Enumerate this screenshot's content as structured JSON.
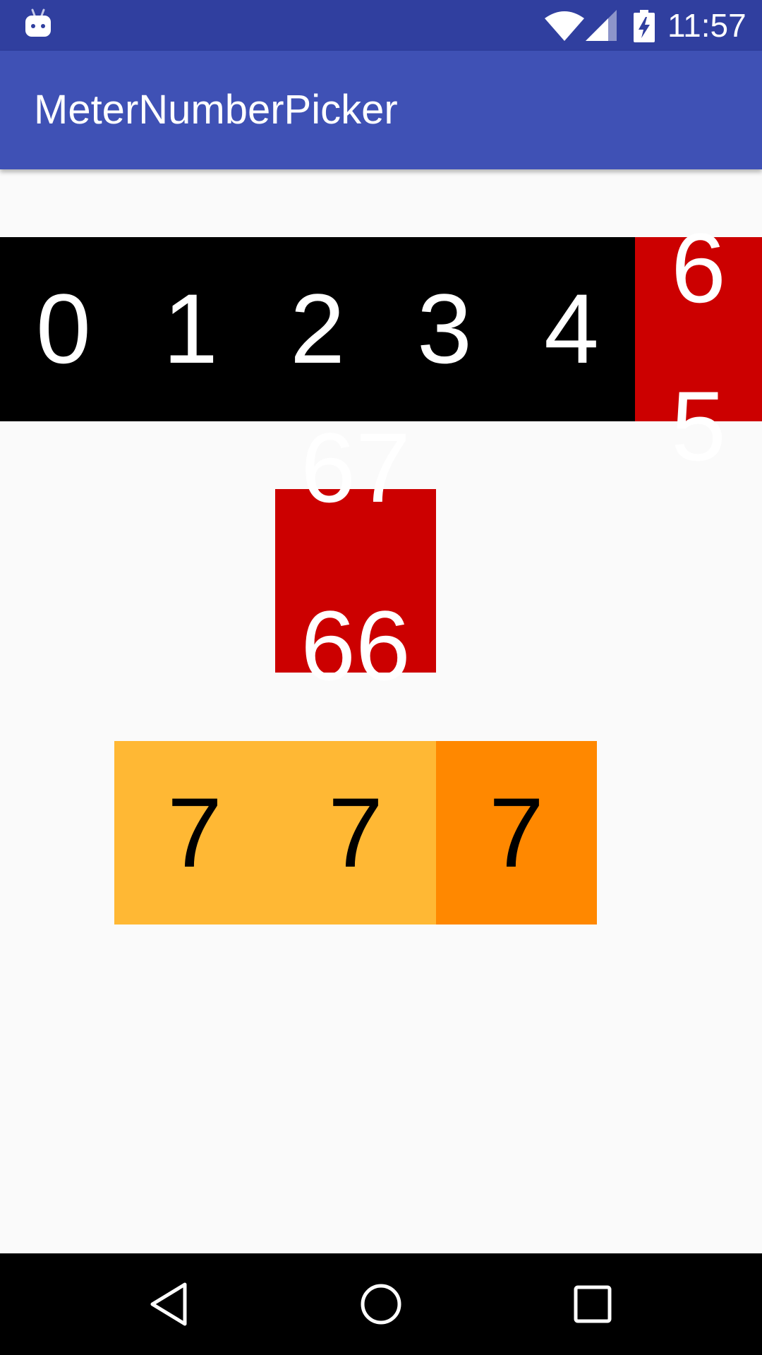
{
  "status_bar": {
    "time": "11:57",
    "icons": [
      "android-icon",
      "wifi-icon",
      "signal-icon",
      "battery-charging-icon"
    ],
    "color": "#303f9f"
  },
  "app_bar": {
    "title": "MeterNumberPicker",
    "color": "#3f51b5"
  },
  "picker_one": {
    "background": "#000000",
    "selected_background": "#cc0000",
    "digits": [
      "0",
      "1",
      "2",
      "3",
      "4"
    ],
    "rolling_cell": {
      "upper": "6",
      "lower": "5"
    }
  },
  "picker_two": {
    "background": "#cc0000",
    "upper": "67",
    "lower": "66"
  },
  "picker_three": {
    "cells": [
      {
        "digit": "7",
        "background": "#ffb834"
      },
      {
        "digit": "7",
        "background": "#ffb834"
      },
      {
        "digit": "7",
        "background": "#ff8800"
      }
    ]
  },
  "nav_bar": {
    "icons": [
      "back-icon",
      "home-icon",
      "recents-icon"
    ]
  }
}
